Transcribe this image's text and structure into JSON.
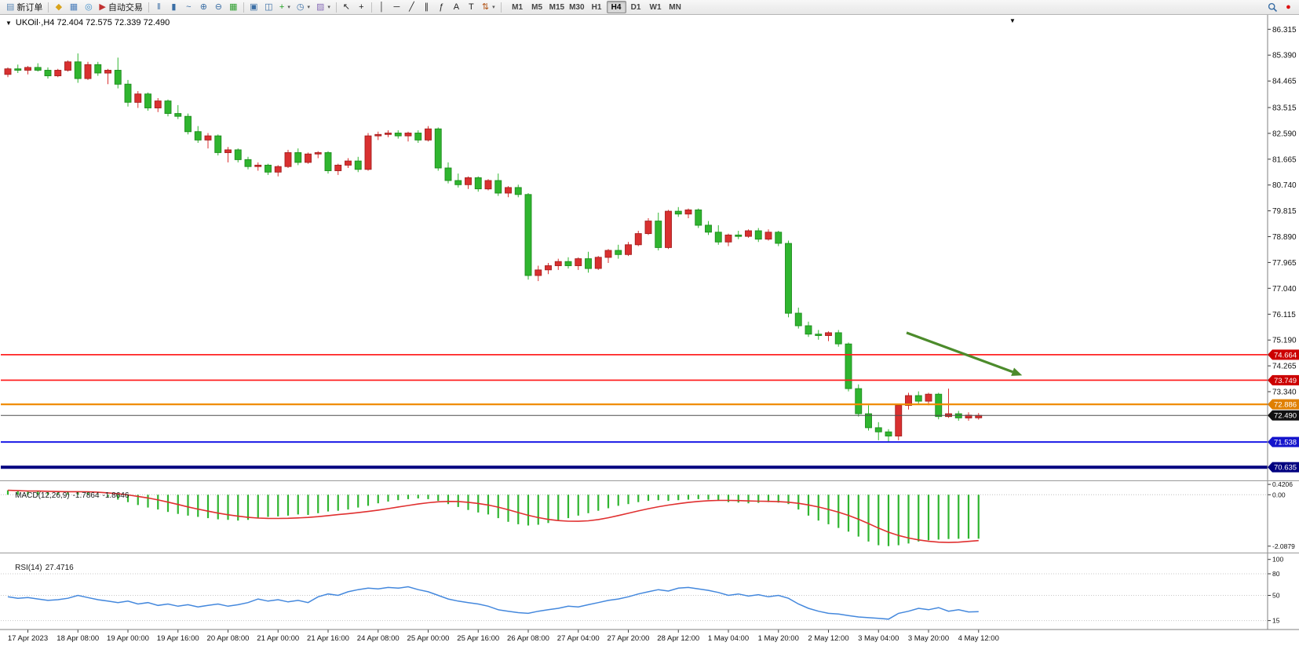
{
  "window": {
    "toolbar": {
      "new_order_label": "新订单",
      "autotrade_label": "自动交易",
      "timeframes": [
        "M1",
        "M5",
        "M15",
        "M30",
        "H1",
        "H4",
        "D1",
        "W1",
        "MN"
      ],
      "active_timeframe": "H4",
      "left_icons": [
        {
          "name": "market-watch-button",
          "glyph": "◆",
          "color": "#D9A31B"
        },
        {
          "name": "data-window-button",
          "glyph": "▦",
          "color": "#4A7EBB"
        },
        {
          "name": "navigator-button",
          "glyph": "◎",
          "color": "#3F8FCC"
        }
      ],
      "tool_icons": [
        {
          "name": "chart-bars-button",
          "glyph": "‖",
          "color": "#3A6EA5"
        },
        {
          "name": "chart-candles-button",
          "glyph": "▮",
          "color": "#3A6EA5"
        },
        {
          "name": "chart-line-button",
          "glyph": "~",
          "color": "#3A6EA5"
        },
        {
          "name": "zoom-in-button",
          "glyph": "⊕",
          "color": "#3A6EA5"
        },
        {
          "name": "zoom-out-button",
          "glyph": "⊖",
          "color": "#3A6EA5"
        },
        {
          "name": "tile-windows-button",
          "glyph": "▦",
          "color": "#2E9E2E"
        },
        {
          "sep": true
        },
        {
          "name": "new-chart-button",
          "glyph": "▣",
          "color": "#3A6EA5"
        },
        {
          "name": "profiles-button",
          "glyph": "◫",
          "color": "#3A6EA5"
        },
        {
          "name": "indicators-button",
          "glyph": "+",
          "color": "#1E9E1E",
          "caret": true
        },
        {
          "name": "periods-button",
          "glyph": "◷",
          "color": "#3A6EA5",
          "caret": true
        },
        {
          "name": "templates-button",
          "glyph": "▨",
          "color": "#8A6FB8",
          "caret": true
        },
        {
          "sep": true
        },
        {
          "name": "cursor-button",
          "glyph": "↖",
          "color": "#222222"
        },
        {
          "name": "crosshair-button",
          "glyph": "+",
          "color": "#222222"
        },
        {
          "sep": true
        },
        {
          "name": "vertical-line-button",
          "glyph": "│",
          "color": "#222222"
        },
        {
          "name": "horizontal-line-button",
          "glyph": "─",
          "color": "#222222"
        },
        {
          "name": "trendline-button",
          "glyph": "╱",
          "color": "#222222"
        },
        {
          "name": "channel-button",
          "glyph": "∥",
          "color": "#222222"
        },
        {
          "name": "fibonacci-button",
          "glyph": "ƒ",
          "color": "#222222"
        },
        {
          "name": "text-button",
          "glyph": "A",
          "color": "#222222"
        },
        {
          "name": "text-label-button",
          "glyph": "T",
          "color": "#222222"
        },
        {
          "name": "arrows-button",
          "glyph": "⇅",
          "color": "#B05010",
          "caret": true
        },
        {
          "sep": true
        }
      ],
      "right_icons": [
        {
          "name": "search-button",
          "type": "magnifier"
        },
        {
          "name": "status-badge-icon",
          "glyph": "●",
          "color": "#DD1111"
        }
      ]
    }
  },
  "chart": {
    "symbol": "UKOil·",
    "timeframe": "H4",
    "title": "UKOil·,H4 72.404 72.575 72.339 72.490",
    "collapse_icon": "▼",
    "shift_icon": "▼"
  },
  "indicators": {
    "macd": {
      "label": "MACD(12,26,9)",
      "value_main": "-1.7864",
      "value_signal": "-1.8646"
    },
    "rsi": {
      "label": "RSI(14)",
      "value": "27.4716"
    }
  },
  "hlines": [
    {
      "price": 74.664,
      "label": "74.664",
      "line_color": "#FF2222",
      "width": 1.8,
      "tag_color": "#CC0000"
    },
    {
      "price": 73.749,
      "label": "73.749",
      "line_color": "#FF2222",
      "width": 1.8,
      "tag_color": "#CC0000"
    },
    {
      "price": 72.886,
      "label": "72.886",
      "line_color": "#F08C00",
      "width": 2.2,
      "tag_color": "#E07F00"
    },
    {
      "price": 72.49,
      "label": "72.490",
      "line_color": "#4D4D4D",
      "width": 1,
      "tag_color": "#111111",
      "current": true
    },
    {
      "price": 71.538,
      "label": "71.538",
      "line_color": "#1A1AE6",
      "width": 2,
      "tag_color": "#1414CC"
    },
    {
      "price": 70.635,
      "label": "70.635",
      "line_color": "#000080",
      "width": 4,
      "tag_color": "#000080"
    }
  ],
  "annotations": {
    "trend_arrow": {
      "from_index": 89.8,
      "from_price": 75.45,
      "to_index": 100.4,
      "to_price": 74.05,
      "color": "#4C8B2B"
    }
  },
  "chart_data": [
    {
      "type": "candlestick",
      "symbol": "UKOil",
      "timeframe": "H4",
      "ylim": [
        70.15,
        86.83
      ],
      "up_color": "#D93030",
      "up_border": "#A32020",
      "down_color": "#2FB52F",
      "down_border": "#1E8C1E",
      "last_candle": {
        "open": 72.404,
        "high": 72.575,
        "low": 72.339,
        "close": 72.49
      },
      "y_ticks": [
        "86.315",
        "85.390",
        "84.465",
        "83.515",
        "82.590",
        "81.665",
        "80.740",
        "79.815",
        "78.890",
        "77.965",
        "77.040",
        "76.115",
        "75.190",
        "74.265",
        "73.340"
      ],
      "x_labels": [
        "17 Apr 2023",
        "18 Apr 08:00",
        "19 Apr 00:00",
        "19 Apr 16:00",
        "20 Apr 08:00",
        "21 Apr 00:00",
        "21 Apr 16:00",
        "24 Apr 08:00",
        "25 Apr 00:00",
        "25 Apr 16:00",
        "26 Apr 08:00",
        "27 Apr 04:00",
        "27 Apr 20:00",
        "28 Apr 12:00",
        "1 May 04:00",
        "1 May 20:00",
        "2 May 12:00",
        "3 May 04:00",
        "3 May 20:00",
        "4 May 12:00"
      ],
      "ohlc": [
        [
          84.7,
          84.95,
          84.6,
          84.9
        ],
        [
          84.9,
          85.05,
          84.75,
          84.85
        ],
        [
          84.85,
          85.0,
          84.7,
          84.95
        ],
        [
          84.95,
          85.1,
          84.8,
          84.85
        ],
        [
          84.85,
          84.95,
          84.55,
          84.65
        ],
        [
          84.65,
          84.9,
          84.6,
          84.85
        ],
        [
          84.85,
          85.2,
          84.8,
          85.15
        ],
        [
          85.15,
          85.45,
          84.4,
          84.55
        ],
        [
          84.55,
          85.15,
          84.5,
          85.05
        ],
        [
          85.05,
          85.15,
          84.65,
          84.75
        ],
        [
          84.75,
          84.9,
          84.35,
          84.85
        ],
        [
          84.85,
          85.3,
          84.2,
          84.35
        ],
        [
          84.35,
          84.5,
          83.55,
          83.7
        ],
        [
          83.7,
          84.1,
          83.5,
          84.0
        ],
        [
          84.0,
          84.05,
          83.4,
          83.5
        ],
        [
          83.5,
          83.85,
          83.35,
          83.75
        ],
        [
          83.75,
          83.8,
          83.2,
          83.3
        ],
        [
          83.3,
          83.6,
          83.1,
          83.2
        ],
        [
          83.2,
          83.3,
          82.55,
          82.65
        ],
        [
          82.65,
          82.85,
          82.25,
          82.35
        ],
        [
          82.35,
          82.6,
          82.05,
          82.5
        ],
        [
          82.5,
          82.55,
          81.8,
          81.9
        ],
        [
          81.9,
          82.1,
          81.55,
          82.0
        ],
        [
          82.0,
          82.05,
          81.55,
          81.65
        ],
        [
          81.65,
          81.75,
          81.3,
          81.4
        ],
        [
          81.4,
          81.55,
          81.25,
          81.45
        ],
        [
          81.45,
          81.5,
          81.1,
          81.2
        ],
        [
          81.2,
          81.45,
          81.05,
          81.4
        ],
        [
          81.4,
          82.0,
          81.35,
          81.9
        ],
        [
          81.9,
          82.05,
          81.45,
          81.55
        ],
        [
          81.55,
          81.9,
          81.5,
          81.85
        ],
        [
          81.85,
          81.95,
          81.7,
          81.9
        ],
        [
          81.9,
          81.95,
          81.15,
          81.25
        ],
        [
          81.25,
          81.5,
          81.1,
          81.45
        ],
        [
          81.45,
          81.7,
          81.35,
          81.6
        ],
        [
          81.6,
          81.75,
          81.2,
          81.3
        ],
        [
          81.3,
          82.6,
          81.25,
          82.5
        ],
        [
          82.5,
          82.65,
          82.35,
          82.55
        ],
        [
          82.55,
          82.7,
          82.45,
          82.6
        ],
        [
          82.6,
          82.7,
          82.4,
          82.5
        ],
        [
          82.5,
          82.65,
          82.3,
          82.6
        ],
        [
          82.6,
          82.7,
          82.25,
          82.35
        ],
        [
          82.35,
          82.85,
          82.3,
          82.75
        ],
        [
          82.75,
          82.8,
          81.25,
          81.35
        ],
        [
          81.35,
          81.55,
          80.8,
          80.9
        ],
        [
          80.9,
          81.15,
          80.65,
          80.75
        ],
        [
          80.75,
          81.05,
          80.6,
          81.0
        ],
        [
          81.0,
          81.05,
          80.5,
          80.6
        ],
        [
          80.6,
          80.95,
          80.55,
          80.9
        ],
        [
          80.9,
          81.15,
          80.35,
          80.45
        ],
        [
          80.45,
          80.7,
          80.3,
          80.65
        ],
        [
          80.65,
          80.75,
          80.3,
          80.4
        ],
        [
          80.4,
          80.45,
          77.35,
          77.5
        ],
        [
          77.5,
          77.85,
          77.3,
          77.7
        ],
        [
          77.7,
          77.95,
          77.55,
          77.85
        ],
        [
          77.85,
          78.1,
          77.7,
          78.0
        ],
        [
          78.0,
          78.15,
          77.75,
          77.85
        ],
        [
          77.85,
          78.15,
          77.7,
          78.1
        ],
        [
          78.1,
          78.35,
          77.6,
          77.75
        ],
        [
          77.75,
          78.2,
          77.7,
          78.15
        ],
        [
          78.15,
          78.45,
          77.95,
          78.4
        ],
        [
          78.4,
          78.6,
          78.1,
          78.25
        ],
        [
          78.25,
          78.7,
          78.2,
          78.6
        ],
        [
          78.6,
          79.1,
          78.55,
          79.0
        ],
        [
          79.0,
          79.55,
          78.95,
          79.45
        ],
        [
          79.45,
          79.75,
          78.4,
          78.5
        ],
        [
          78.5,
          79.85,
          78.45,
          79.8
        ],
        [
          79.8,
          79.95,
          79.6,
          79.7
        ],
        [
          79.7,
          79.9,
          79.55,
          79.85
        ],
        [
          79.85,
          79.9,
          79.2,
          79.3
        ],
        [
          79.3,
          79.45,
          78.95,
          79.05
        ],
        [
          79.05,
          79.3,
          78.6,
          78.7
        ],
        [
          78.7,
          79.0,
          78.55,
          78.95
        ],
        [
          78.95,
          79.1,
          78.8,
          78.9
        ],
        [
          78.9,
          79.15,
          78.85,
          79.1
        ],
        [
          79.1,
          79.2,
          78.7,
          78.8
        ],
        [
          78.8,
          79.15,
          78.75,
          79.05
        ],
        [
          79.05,
          79.1,
          78.55,
          78.65
        ],
        [
          78.65,
          78.75,
          76.0,
          76.15
        ],
        [
          76.15,
          76.35,
          75.6,
          75.7
        ],
        [
          75.7,
          75.85,
          75.3,
          75.4
        ],
        [
          75.4,
          75.55,
          75.2,
          75.35
        ],
        [
          75.35,
          75.5,
          75.15,
          75.45
        ],
        [
          75.45,
          75.55,
          74.95,
          75.05
        ],
        [
          75.05,
          75.1,
          73.35,
          73.45
        ],
        [
          73.45,
          73.6,
          72.45,
          72.55
        ],
        [
          72.55,
          72.85,
          71.95,
          72.05
        ],
        [
          72.05,
          72.25,
          71.6,
          71.9
        ],
        [
          71.9,
          72.0,
          71.55,
          71.75
        ],
        [
          71.75,
          72.9,
          71.6,
          72.85
        ],
        [
          72.85,
          73.3,
          72.7,
          73.2
        ],
        [
          73.2,
          73.35,
          72.9,
          73.0
        ],
        [
          73.0,
          73.3,
          72.85,
          73.25
        ],
        [
          73.25,
          73.3,
          72.35,
          72.45
        ],
        [
          72.45,
          73.45,
          72.4,
          72.55
        ],
        [
          72.55,
          72.65,
          72.3,
          72.4
        ],
        [
          72.4,
          72.6,
          72.3,
          72.5
        ],
        [
          72.404,
          72.575,
          72.339,
          72.49
        ]
      ]
    },
    {
      "type": "bar",
      "name": "MACD",
      "params": "12,26,9",
      "ylim": [
        -2.35,
        0.55
      ],
      "y_ticks": [
        "0.4206",
        "0.00",
        "-2.0879"
      ],
      "colors": {
        "histogram": "#2FB52F",
        "signal": "#E03030"
      },
      "signal_smoothing": 9,
      "values": [
        0.18,
        0.15,
        0.12,
        0.14,
        0.1,
        0.08,
        0.1,
        0.12,
        0.08,
        0.02,
        -0.08,
        -0.2,
        -0.3,
        -0.42,
        -0.52,
        -0.6,
        -0.7,
        -0.78,
        -0.85,
        -0.9,
        -0.95,
        -1.0,
        -1.02,
        -1.05,
        -1.02,
        -0.95,
        -0.9,
        -0.88,
        -0.85,
        -0.8,
        -0.82,
        -0.75,
        -0.68,
        -0.65,
        -0.6,
        -0.52,
        -0.45,
        -0.35,
        -0.28,
        -0.22,
        -0.18,
        -0.15,
        -0.18,
        -0.25,
        -0.38,
        -0.5,
        -0.62,
        -0.72,
        -0.8,
        -0.95,
        -1.1,
        -1.2,
        -1.25,
        -1.22,
        -1.15,
        -1.05,
        -0.95,
        -0.85,
        -0.75,
        -0.65,
        -0.55,
        -0.45,
        -0.38,
        -0.3,
        -0.25,
        -0.22,
        -0.25,
        -0.22,
        -0.2,
        -0.18,
        -0.2,
        -0.25,
        -0.3,
        -0.32,
        -0.35,
        -0.33,
        -0.3,
        -0.32,
        -0.38,
        -0.6,
        -0.85,
        -1.05,
        -1.2,
        -1.35,
        -1.5,
        -1.7,
        -1.9,
        -2.05,
        -2.0879,
        -2.05,
        -1.98,
        -1.9,
        -1.85,
        -1.82,
        -1.8,
        -1.79,
        -1.785,
        -1.7864
      ]
    },
    {
      "type": "line",
      "name": "RSI",
      "params": "14",
      "ylim": [
        0,
        107
      ],
      "levels": [
        80,
        50,
        15
      ],
      "y_ticks": [
        "100",
        "80",
        "50",
        "15"
      ],
      "color": "#4488DD",
      "values": [
        48,
        46,
        47,
        45,
        43,
        44,
        46,
        50,
        47,
        44,
        42,
        40,
        42,
        38,
        40,
        36,
        38,
        35,
        37,
        34,
        36,
        38,
        35,
        37,
        40,
        45,
        42,
        44,
        41,
        43,
        40,
        48,
        52,
        50,
        55,
        58,
        60,
        59,
        61,
        60,
        62,
        58,
        55,
        50,
        45,
        42,
        40,
        38,
        35,
        30,
        28,
        26,
        25,
        28,
        30,
        32,
        35,
        34,
        37,
        40,
        43,
        45,
        48,
        52,
        55,
        58,
        56,
        60,
        61,
        59,
        57,
        54,
        50,
        52,
        49,
        51,
        48,
        50,
        46,
        38,
        32,
        28,
        25,
        24,
        22,
        20,
        19,
        18,
        17,
        25,
        28,
        32,
        30,
        33,
        28,
        30,
        27,
        27.4716
      ]
    }
  ]
}
